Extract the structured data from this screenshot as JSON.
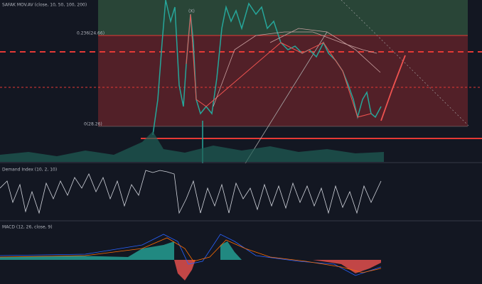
{
  "header": {
    "title": "SAFAK MOV.AV (close, 10, 50, 100, 200)"
  },
  "annotations": {
    "wave": "(X)",
    "fib_236": "0.236(24.66)",
    "fib_0": "0(28.26)"
  },
  "panes": {
    "demand_index": "Demand Index (10, 2, 10)",
    "macd": "MACD (12, 26, close, 9)"
  }
}
